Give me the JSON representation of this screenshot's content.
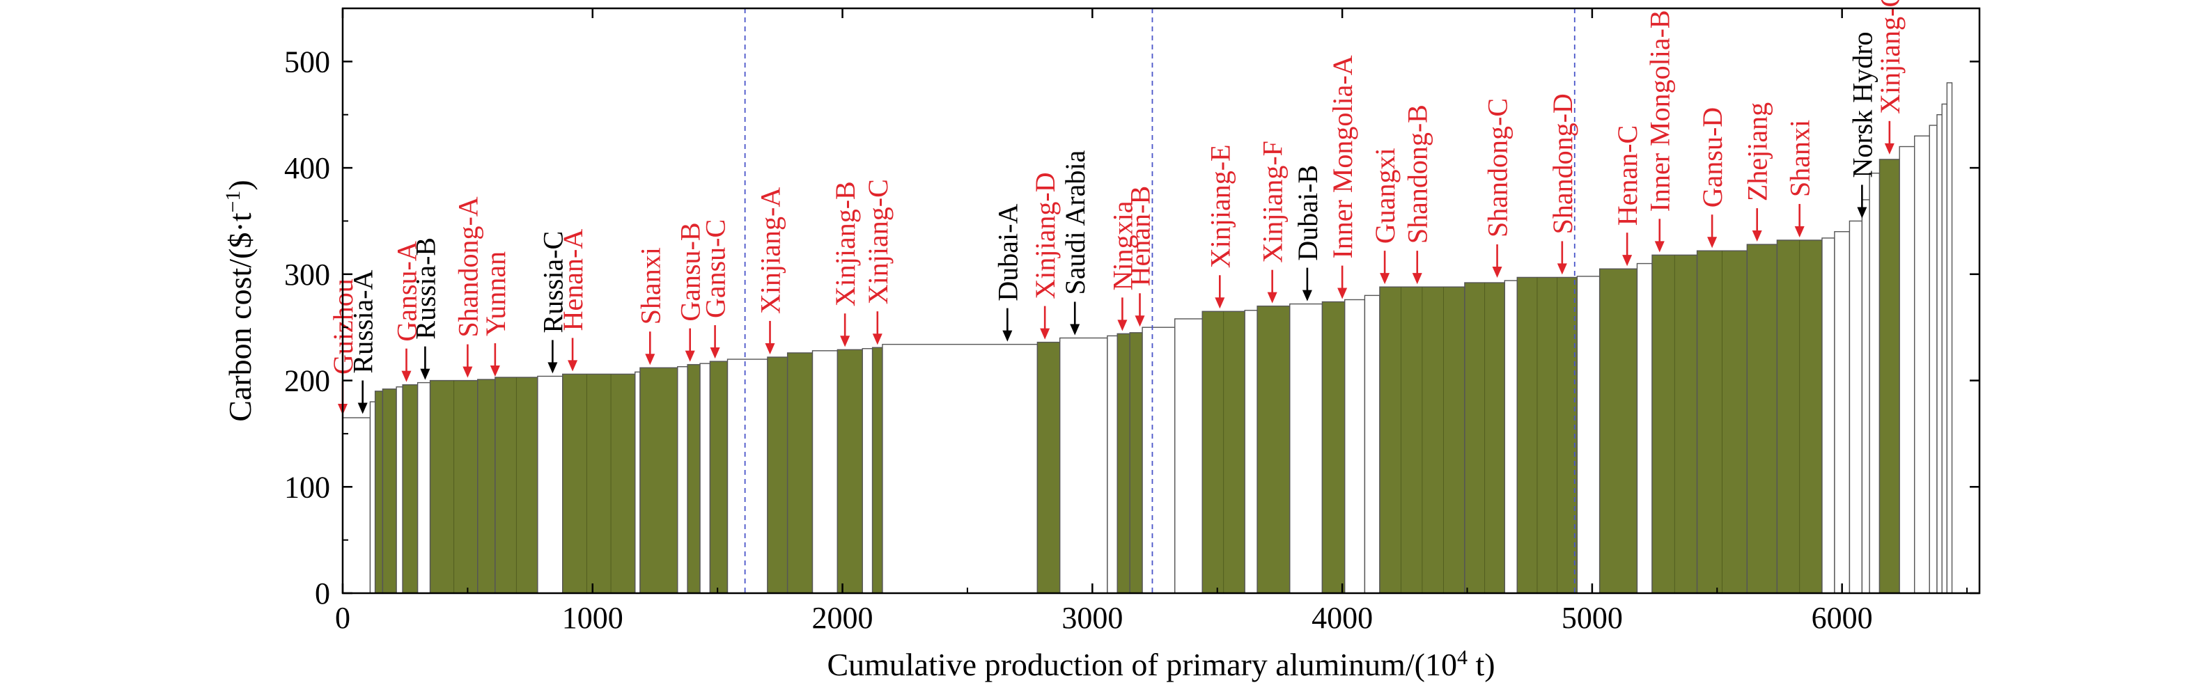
{
  "chart_data": {
    "type": "bar",
    "subtype": "variable-width cost curve",
    "xlabel": "Cumulative production of primary aluminum/(10",
    "xlabel_sup": "4",
    "xlabel_end": " t)",
    "ylabel": "Carbon cost/($·t",
    "ylabel_sup": "−1",
    "ylabel_end": ")",
    "xlim": [
      0,
      6550
    ],
    "ylim": [
      0,
      550
    ],
    "xticks": [
      0,
      1000,
      2000,
      3000,
      4000,
      5000,
      6000
    ],
    "xtick_labels": [
      "0",
      "1000",
      "2000",
      "3000",
      "4000",
      "5000",
      "6000"
    ],
    "yticks": [
      0,
      100,
      200,
      300,
      400,
      500
    ],
    "ytick_labels": [
      "0",
      "100",
      "200",
      "300",
      "400",
      "500"
    ],
    "grid": false,
    "divider_lines_x": [
      1610,
      3240,
      4930
    ],
    "colors": {
      "highlight": "#6e7b2f",
      "other": "#ffffff",
      "outline": "#555555",
      "divider": "#4a55c9",
      "china_label": "#e0242b",
      "foreign_label": "#000000"
    },
    "bars": [
      {
        "x0": 0,
        "x1": 110,
        "y": 165,
        "hl": false
      },
      {
        "x0": 110,
        "x1": 130,
        "y": 180,
        "hl": false
      },
      {
        "x0": 130,
        "x1": 160,
        "y": 190,
        "hl": true
      },
      {
        "x0": 160,
        "x1": 215,
        "y": 192,
        "hl": true
      },
      {
        "x0": 215,
        "x1": 240,
        "y": 194,
        "hl": false
      },
      {
        "x0": 240,
        "x1": 300,
        "y": 196,
        "hl": true
      },
      {
        "x0": 300,
        "x1": 350,
        "y": 198,
        "hl": false
      },
      {
        "x0": 350,
        "x1": 540,
        "y": 200,
        "hl": true
      },
      {
        "x0": 540,
        "x1": 610,
        "y": 201,
        "hl": true
      },
      {
        "x0": 610,
        "x1": 780,
        "y": 203,
        "hl": true
      },
      {
        "x0": 780,
        "x1": 880,
        "y": 204,
        "hl": false
      },
      {
        "x0": 880,
        "x1": 1170,
        "y": 206,
        "hl": true
      },
      {
        "x0": 1170,
        "x1": 1190,
        "y": 208,
        "hl": false
      },
      {
        "x0": 1190,
        "x1": 1340,
        "y": 212,
        "hl": true
      },
      {
        "x0": 1340,
        "x1": 1380,
        "y": 213,
        "hl": false
      },
      {
        "x0": 1380,
        "x1": 1430,
        "y": 215,
        "hl": true
      },
      {
        "x0": 1430,
        "x1": 1470,
        "y": 216,
        "hl": false
      },
      {
        "x0": 1470,
        "x1": 1540,
        "y": 218,
        "hl": true
      },
      {
        "x0": 1540,
        "x1": 1700,
        "y": 220,
        "hl": false
      },
      {
        "x0": 1700,
        "x1": 1780,
        "y": 222,
        "hl": true
      },
      {
        "x0": 1780,
        "x1": 1880,
        "y": 226,
        "hl": true
      },
      {
        "x0": 1880,
        "x1": 1980,
        "y": 228,
        "hl": false
      },
      {
        "x0": 1980,
        "x1": 2080,
        "y": 229,
        "hl": true
      },
      {
        "x0": 2080,
        "x1": 2120,
        "y": 230,
        "hl": false
      },
      {
        "x0": 2120,
        "x1": 2160,
        "y": 231,
        "hl": true
      },
      {
        "x0": 2160,
        "x1": 2780,
        "y": 234,
        "hl": false
      },
      {
        "x0": 2780,
        "x1": 2870,
        "y": 236,
        "hl": true
      },
      {
        "x0": 2870,
        "x1": 3060,
        "y": 240,
        "hl": false
      },
      {
        "x0": 3060,
        "x1": 3100,
        "y": 242,
        "hl": false
      },
      {
        "x0": 3100,
        "x1": 3150,
        "y": 244,
        "hl": true
      },
      {
        "x0": 3150,
        "x1": 3200,
        "y": 245,
        "hl": true
      },
      {
        "x0": 3200,
        "x1": 3330,
        "y": 250,
        "hl": false
      },
      {
        "x0": 3330,
        "x1": 3440,
        "y": 258,
        "hl": false
      },
      {
        "x0": 3440,
        "x1": 3610,
        "y": 265,
        "hl": true
      },
      {
        "x0": 3610,
        "x1": 3660,
        "y": 266,
        "hl": false
      },
      {
        "x0": 3660,
        "x1": 3790,
        "y": 270,
        "hl": true
      },
      {
        "x0": 3790,
        "x1": 3920,
        "y": 272,
        "hl": false
      },
      {
        "x0": 3920,
        "x1": 4010,
        "y": 274,
        "hl": true
      },
      {
        "x0": 4010,
        "x1": 4090,
        "y": 276,
        "hl": false
      },
      {
        "x0": 4090,
        "x1": 4150,
        "y": 280,
        "hl": false
      },
      {
        "x0": 4150,
        "x1": 4490,
        "y": 288,
        "hl": true
      },
      {
        "x0": 4490,
        "x1": 4650,
        "y": 292,
        "hl": true
      },
      {
        "x0": 4650,
        "x1": 4700,
        "y": 294,
        "hl": false
      },
      {
        "x0": 4700,
        "x1": 4940,
        "y": 297,
        "hl": true
      },
      {
        "x0": 4940,
        "x1": 5030,
        "y": 298,
        "hl": false
      },
      {
        "x0": 5030,
        "x1": 5180,
        "y": 305,
        "hl": true
      },
      {
        "x0": 5180,
        "x1": 5240,
        "y": 310,
        "hl": false
      },
      {
        "x0": 5240,
        "x1": 5420,
        "y": 318,
        "hl": true
      },
      {
        "x0": 5420,
        "x1": 5620,
        "y": 322,
        "hl": true
      },
      {
        "x0": 5620,
        "x1": 5740,
        "y": 328,
        "hl": true
      },
      {
        "x0": 5740,
        "x1": 5920,
        "y": 332,
        "hl": true
      },
      {
        "x0": 5920,
        "x1": 5970,
        "y": 334,
        "hl": false
      },
      {
        "x0": 5970,
        "x1": 6030,
        "y": 340,
        "hl": false
      },
      {
        "x0": 6030,
        "x1": 6080,
        "y": 350,
        "hl": false
      },
      {
        "x0": 6080,
        "x1": 6110,
        "y": 370,
        "hl": false
      },
      {
        "x0": 6110,
        "x1": 6150,
        "y": 395,
        "hl": false
      },
      {
        "x0": 6150,
        "x1": 6230,
        "y": 408,
        "hl": true
      },
      {
        "x0": 6230,
        "x1": 6290,
        "y": 420,
        "hl": false
      },
      {
        "x0": 6290,
        "x1": 6350,
        "y": 430,
        "hl": false
      },
      {
        "x0": 6350,
        "x1": 6380,
        "y": 440,
        "hl": false
      },
      {
        "x0": 6380,
        "x1": 6400,
        "y": 450,
        "hl": false
      },
      {
        "x0": 6400,
        "x1": 6420,
        "y": 460,
        "hl": false
      },
      {
        "x0": 6420,
        "x1": 6440,
        "y": 480,
        "hl": false
      }
    ],
    "annotations": [
      {
        "text": "Guizhou",
        "x": 0,
        "y": 165,
        "china": true
      },
      {
        "text": "Russia-A",
        "x": 80,
        "y": 166,
        "china": false
      },
      {
        "text": "Gansu-A",
        "x": 255,
        "y": 196,
        "china": true
      },
      {
        "text": "Russia-B",
        "x": 330,
        "y": 198,
        "china": false
      },
      {
        "text": "Shandong-A",
        "x": 500,
        "y": 200,
        "china": true
      },
      {
        "text": "Yunnan",
        "x": 610,
        "y": 201,
        "china": true
      },
      {
        "text": "Russia-C",
        "x": 840,
        "y": 204,
        "china": false
      },
      {
        "text": "Henan-A",
        "x": 920,
        "y": 206,
        "china": true
      },
      {
        "text": "Shanxi",
        "x": 1230,
        "y": 212,
        "china": true
      },
      {
        "text": "Gansu-B",
        "x": 1390,
        "y": 215,
        "china": true
      },
      {
        "text": "Gansu-C",
        "x": 1490,
        "y": 218,
        "china": true
      },
      {
        "text": "Xinjiang-A",
        "x": 1710,
        "y": 222,
        "china": true
      },
      {
        "text": "Xinjiang-B",
        "x": 2010,
        "y": 229,
        "china": true
      },
      {
        "text": "Xinjiang-C",
        "x": 2140,
        "y": 231,
        "china": true
      },
      {
        "text": "Dubai-A",
        "x": 2660,
        "y": 234,
        "china": false
      },
      {
        "text": "Xinjiang-D",
        "x": 2810,
        "y": 236,
        "china": true
      },
      {
        "text": "Saudi Arabia",
        "x": 2930,
        "y": 240,
        "china": false
      },
      {
        "text": "Ningxia",
        "x": 3120,
        "y": 244,
        "china": true
      },
      {
        "text": "Henan-B",
        "x": 3190,
        "y": 248,
        "china": true
      },
      {
        "text": "Xinjiang-E",
        "x": 3510,
        "y": 265,
        "china": true
      },
      {
        "text": "Xinjiang-F",
        "x": 3720,
        "y": 270,
        "china": true
      },
      {
        "text": "Dubai-B",
        "x": 3860,
        "y": 272,
        "china": false
      },
      {
        "text": "Inner Mongolia-A",
        "x": 4000,
        "y": 274,
        "china": true
      },
      {
        "text": "Guangxi",
        "x": 4170,
        "y": 288,
        "china": true
      },
      {
        "text": "Shandong-B",
        "x": 4300,
        "y": 288,
        "china": true
      },
      {
        "text": "Shandong-C",
        "x": 4620,
        "y": 294,
        "china": true
      },
      {
        "text": "Shandong-D",
        "x": 4880,
        "y": 297,
        "china": true
      },
      {
        "text": "Henan-C",
        "x": 5140,
        "y": 305,
        "china": true
      },
      {
        "text": "Inner Mongolia-B",
        "x": 5270,
        "y": 318,
        "china": true
      },
      {
        "text": "Gansu-D",
        "x": 5480,
        "y": 322,
        "china": true
      },
      {
        "text": "Zhejiang",
        "x": 5660,
        "y": 328,
        "china": true
      },
      {
        "text": "Shanxi",
        "x": 5830,
        "y": 332,
        "china": true
      },
      {
        "text": "Norsk Hydro",
        "x": 6080,
        "y": 350,
        "china": false
      },
      {
        "text": "Xinjiang-G",
        "x": 6190,
        "y": 410,
        "china": true
      }
    ]
  }
}
